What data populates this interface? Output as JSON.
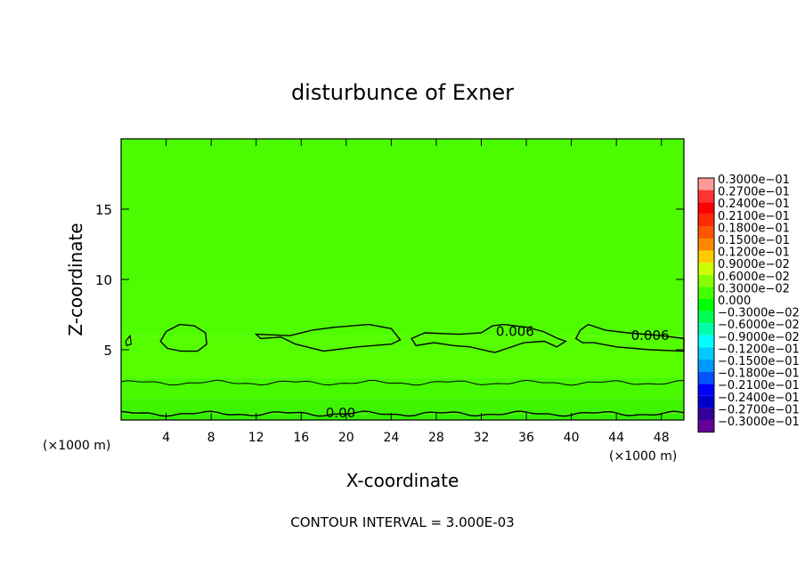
{
  "chart_data": {
    "type": "heatmap",
    "title": "disturbunce of Exner",
    "xlabel": "X-coordinate",
    "ylabel": "Z-coordinate",
    "x_unit": "(×1000 m)",
    "y_unit": "(×1000 m)",
    "xlim": [
      0,
      50
    ],
    "ylim": [
      0,
      20
    ],
    "x_ticks": [
      4,
      8,
      12,
      16,
      20,
      24,
      28,
      32,
      36,
      40,
      44,
      48
    ],
    "y_ticks": [
      5,
      10,
      15
    ],
    "footer": "CONTOUR INTERVAL = 3.000E-03",
    "contour_labels": [
      {
        "text": "0.00",
        "x": 19.5,
        "y": 0.5
      },
      {
        "text": "0.006",
        "x": 35,
        "y": 6.3
      },
      {
        "text": "0.006",
        "x": 47,
        "y": 6.0
      }
    ],
    "contour_interval": 0.003,
    "colorbar": {
      "labels": [
        "0.3000e−01",
        "0.2700e−01",
        "0.2400e−01",
        "0.2100e−01",
        "0.1800e−01",
        "0.1500e−01",
        "0.1200e−01",
        "0.9000e−02",
        "0.6000e−02",
        "0.3000e−02",
        "0.000",
        "−0.3000e−02",
        "−0.6000e−02",
        "−0.9000e−02",
        "−0.1200e−01",
        "−0.1500e−01",
        "−0.1800e−01",
        "−0.2100e−01",
        "−0.2400e−01",
        "−0.2700e−01",
        "−0.3000e−01"
      ],
      "colors": [
        "#ff9999",
        "#ff3333",
        "#ff0000",
        "#ff2a00",
        "#ff5500",
        "#ff8800",
        "#ffcc00",
        "#ccff00",
        "#88ff00",
        "#44ff00",
        "#00ff00",
        "#00ff55",
        "#00ffaa",
        "#00ffff",
        "#00ccff",
        "#0099ff",
        "#0055ff",
        "#0000ff",
        "#0000cc",
        "#330099",
        "#660099"
      ]
    },
    "field_bands": [
      {
        "z": 0.4,
        "color": "#33ee00"
      },
      {
        "z": 1.5,
        "color": "#3ff400"
      },
      {
        "z": 3.0,
        "color": "#48fa00"
      },
      {
        "z": 6.0,
        "color": "#55ff00"
      },
      {
        "z": 10.0,
        "color": "#4ffd00"
      },
      {
        "z": 20.0,
        "color": "#4cfc00"
      }
    ]
  }
}
